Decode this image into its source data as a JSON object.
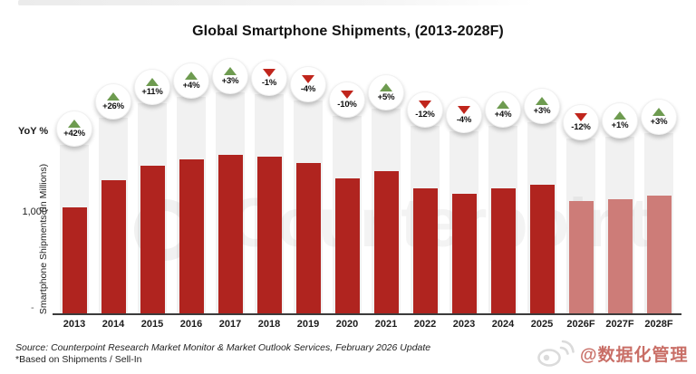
{
  "header": {
    "title": "Global Smartphone Shipments, (2013-2028F)"
  },
  "axes": {
    "yoy_label": "YoY %",
    "y_axis_title": "Smartphone Shipments (In Millions)",
    "y_tick": "1,000",
    "baseline_tick": "-"
  },
  "chart_data": {
    "type": "bar",
    "title": "Global Smartphone Shipments, (2013-2028F)",
    "ylabel": "Smartphone Shipments (In Millions)",
    "xlabel": "",
    "categories": [
      "2013",
      "2014",
      "2015",
      "2016",
      "2017",
      "2018",
      "2019",
      "2020",
      "2021",
      "2022",
      "2023",
      "2024",
      "2025",
      "2026F",
      "2027F",
      "2028F"
    ],
    "series": [
      {
        "name": "Smartphone shipments (millions, est. from chart)",
        "values": [
          1040,
          1310,
          1455,
          1510,
          1555,
          1540,
          1480,
          1330,
          1400,
          1230,
          1180,
          1230,
          1265,
          1110,
          1120,
          1155
        ]
      }
    ],
    "yoy_percent": [
      "+42%",
      "+26%",
      "+11%",
      "+4%",
      "+3%",
      "-1%",
      "-4%",
      "-10%",
      "+5%",
      "-12%",
      "-4%",
      "+4%",
      "+3%",
      "-12%",
      "+1%",
      "+3%"
    ],
    "forecast": [
      false,
      false,
      false,
      false,
      false,
      false,
      false,
      false,
      false,
      false,
      false,
      false,
      false,
      true,
      true,
      true
    ],
    "ylim": [
      0,
      1800
    ],
    "y_tick_labels": [
      "1,000"
    ],
    "grid": false,
    "legend": "none",
    "colors": {
      "actual_bar": "#B0241F",
      "forecast_bar": "#CD7C78",
      "up_triangle": "#6E9B50",
      "down_triangle": "#C0251C",
      "column_track": "#F1F1F1"
    }
  },
  "footer": {
    "source_line1": "Source: Counterpoint Research Market Monitor & Market Outlook Services, February 2026 Update",
    "source_line2": "*Based on Shipments / Sell-In"
  },
  "watermarks": {
    "brand": "Counterpoint",
    "social_handle": "@数据化管理"
  }
}
